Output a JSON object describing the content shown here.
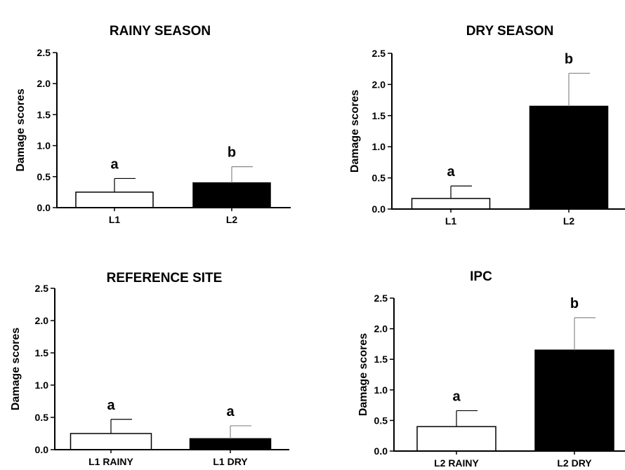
{
  "chart_data": [
    {
      "type": "bar",
      "title": "RAINY SEASON",
      "ylabel": "Damage scores",
      "xlabel": "",
      "ylim": [
        0,
        2.5
      ],
      "yticks": [
        "0.0",
        "0.5",
        "1.0",
        "1.5",
        "2.0",
        "2.5"
      ],
      "categories": [
        "L1",
        "L2"
      ],
      "values": [
        0.25,
        0.4
      ],
      "errors": [
        0.22,
        0.26
      ],
      "significance": [
        "a",
        "b"
      ],
      "bar_colors": [
        "#ffffff",
        "#000000"
      ]
    },
    {
      "type": "bar",
      "title": "DRY SEASON",
      "ylabel": "Damage scores",
      "xlabel": "",
      "ylim": [
        0,
        2.5
      ],
      "yticks": [
        "0.0",
        "0.5",
        "1.0",
        "1.5",
        "2.0",
        "2.5"
      ],
      "categories": [
        "L1",
        "L2"
      ],
      "values": [
        0.17,
        1.65
      ],
      "errors": [
        0.2,
        0.53
      ],
      "significance": [
        "a",
        "b"
      ],
      "bar_colors": [
        "#ffffff",
        "#000000"
      ]
    },
    {
      "type": "bar",
      "title": "REFERENCE SITE",
      "ylabel": "Damage scores",
      "xlabel": "",
      "ylim": [
        0,
        2.5
      ],
      "yticks": [
        "0.0",
        "0.5",
        "1.0",
        "1.5",
        "2.0",
        "2.5"
      ],
      "categories": [
        "L1 RAINY",
        "L1 DRY"
      ],
      "values": [
        0.25,
        0.17
      ],
      "errors": [
        0.22,
        0.2
      ],
      "significance": [
        "a",
        "a"
      ],
      "bar_colors": [
        "#ffffff",
        "#000000"
      ]
    },
    {
      "type": "bar",
      "title": "IPC",
      "ylabel": "Damage scores",
      "xlabel": "",
      "ylim": [
        0,
        2.5
      ],
      "yticks": [
        "0.0",
        "0.5",
        "1.0",
        "1.5",
        "2.0",
        "2.5"
      ],
      "categories": [
        "L2 RAINY",
        "L2 DRY"
      ],
      "values": [
        0.4,
        1.65
      ],
      "errors": [
        0.26,
        0.53
      ],
      "significance": [
        "a",
        "b"
      ],
      "bar_colors": [
        "#ffffff",
        "#000000"
      ]
    }
  ]
}
